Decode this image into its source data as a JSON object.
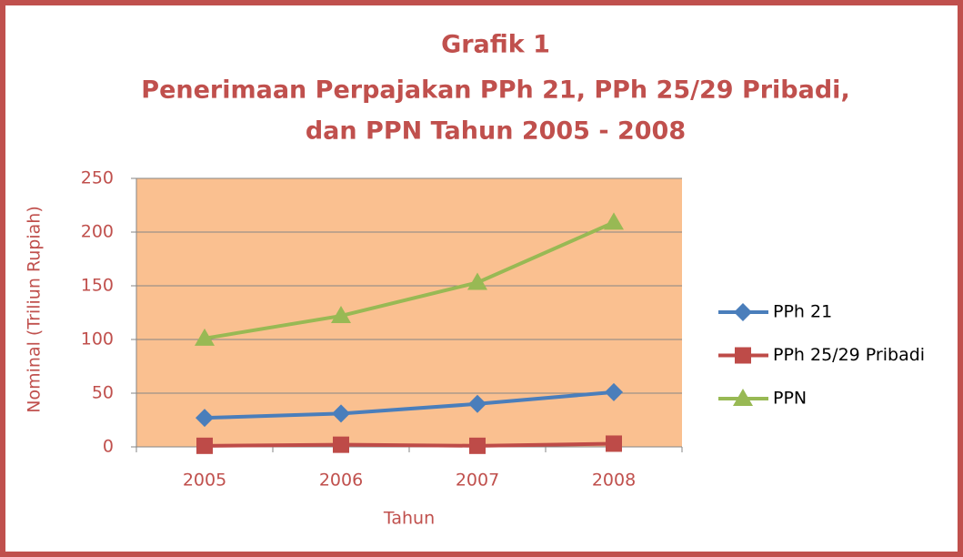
{
  "chart_data": {
    "type": "line",
    "title": [
      "Grafik 1",
      "Penerimaan Perpajakan PPh 21, PPh 25/29 Pribadi,",
      "dan PPN Tahun 2005 - 2008"
    ],
    "x_label": "Tahun",
    "y_label": "Nominal (Triliun Rupiah)",
    "categories": [
      "2005",
      "2006",
      "2007",
      "2008"
    ],
    "series": [
      {
        "name": "PPh 21",
        "color": "#4a7ebb",
        "marker": "diamond",
        "values": [
          27,
          31,
          40,
          51
        ]
      },
      {
        "name": "PPh 25/29 Pribadi",
        "color": "#be4b48",
        "marker": "square",
        "values": [
          1,
          2,
          1,
          3
        ]
      },
      {
        "name": "PPN",
        "color": "#98b954",
        "marker": "triangle",
        "values": [
          101,
          122,
          153,
          209
        ]
      }
    ],
    "ylim": [
      0,
      250
    ],
    "yticks": [
      0,
      50,
      100,
      150,
      200,
      250
    ],
    "grid": true,
    "legend": "right"
  }
}
